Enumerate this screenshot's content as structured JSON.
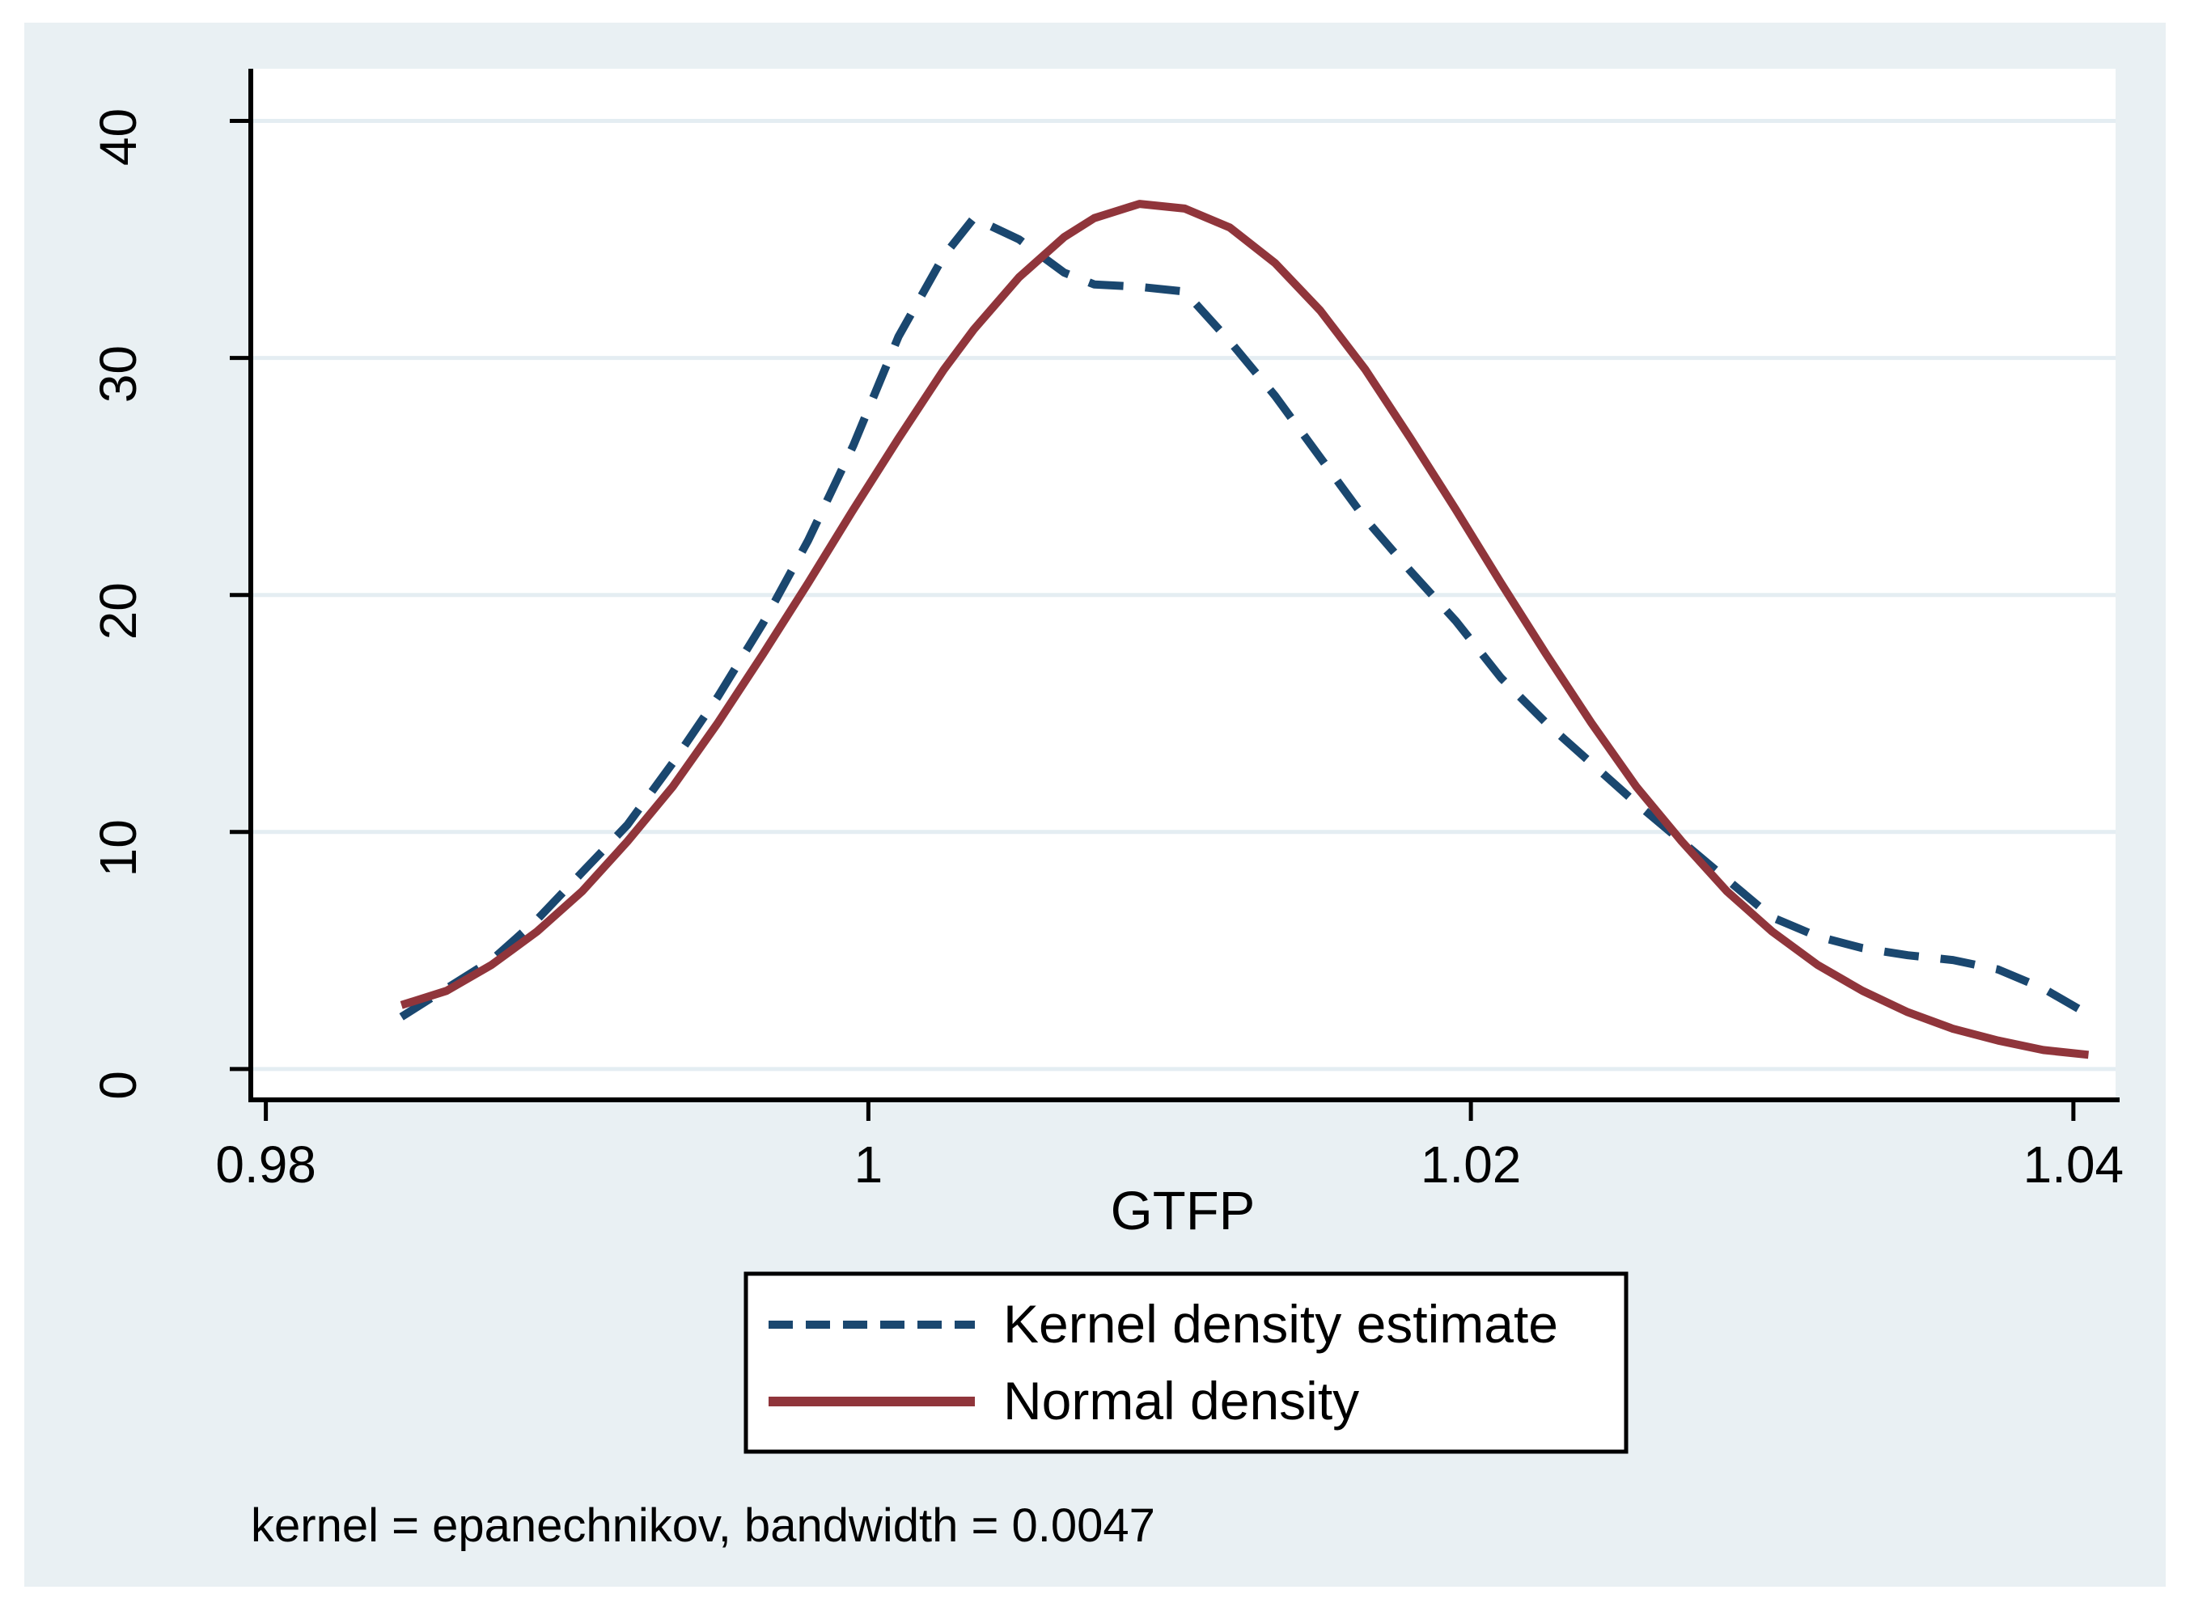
{
  "figure": {
    "note": "kernel = epanechnikov, bandwidth = 0.0047",
    "background_color": "#e9f0f3",
    "plot_background_color": "#ffffff",
    "axis_color": "#000000"
  },
  "chart_data": {
    "type": "line",
    "title": "",
    "xlabel": "GTFP",
    "ylabel": "",
    "xlim": [
      0.9795,
      1.0414
    ],
    "ylim": [
      -1.3,
      42.2
    ],
    "x_ticks": [
      0.98,
      1,
      1.02,
      1.04
    ],
    "x_tick_labels": [
      "0.98",
      "1",
      "1.02",
      "1.04"
    ],
    "y_ticks": [
      0,
      10,
      20,
      30,
      40
    ],
    "y_tick_labels": [
      "0",
      "10",
      "20",
      "30",
      "40"
    ],
    "grid": "horizontal",
    "legend_position": "below-plot",
    "series": [
      {
        "name": "Kernel density estimate",
        "color": "#1a476f",
        "style": "dashed",
        "x": [
          0.9845,
          0.986,
          0.9875,
          0.989,
          0.9905,
          0.992,
          0.9935,
          0.995,
          0.9965,
          0.998,
          0.9995,
          1.001,
          1.0025,
          1.0035,
          1.005,
          1.0065,
          1.0075,
          1.009,
          1.0105,
          1.012,
          1.0135,
          1.015,
          1.0165,
          1.018,
          1.0195,
          1.021,
          1.0225,
          1.024,
          1.0255,
          1.027,
          1.0285,
          1.03,
          1.0315,
          1.033,
          1.0345,
          1.036,
          1.0375,
          1.039,
          1.0405
        ],
        "y": [
          2.2,
          3.4,
          4.6,
          6.3,
          8.3,
          10.3,
          12.9,
          15.7,
          18.8,
          22.3,
          26.3,
          30.9,
          34.3,
          35.9,
          35.0,
          33.6,
          33.1,
          33.0,
          32.8,
          30.7,
          28.4,
          25.8,
          23.2,
          21.0,
          18.9,
          16.5,
          14.6,
          12.9,
          11.2,
          9.6,
          8.0,
          6.4,
          5.6,
          5.1,
          4.8,
          4.6,
          4.2,
          3.4,
          2.3
        ]
      },
      {
        "name": "Normal density",
        "color": "#90353b",
        "style": "solid",
        "x": [
          0.9845,
          0.986,
          0.9875,
          0.989,
          0.9905,
          0.992,
          0.9935,
          0.995,
          0.9965,
          0.998,
          0.9995,
          1.001,
          1.0025,
          1.0035,
          1.005,
          1.0065,
          1.0075,
          1.009,
          1.0105,
          1.012,
          1.0135,
          1.015,
          1.0165,
          1.018,
          1.0195,
          1.021,
          1.0225,
          1.024,
          1.0255,
          1.027,
          1.0285,
          1.03,
          1.0315,
          1.033,
          1.0345,
          1.036,
          1.0375,
          1.039,
          1.0405
        ],
        "y": [
          2.7,
          3.3,
          4.4,
          5.8,
          7.5,
          9.6,
          11.9,
          14.6,
          17.5,
          20.5,
          23.6,
          26.6,
          29.5,
          31.2,
          33.4,
          35.1,
          35.9,
          36.5,
          36.3,
          35.5,
          34.0,
          32.0,
          29.5,
          26.6,
          23.6,
          20.5,
          17.5,
          14.6,
          11.9,
          9.6,
          7.5,
          5.8,
          4.4,
          3.3,
          2.4,
          1.7,
          1.2,
          0.8,
          0.6
        ]
      }
    ]
  }
}
